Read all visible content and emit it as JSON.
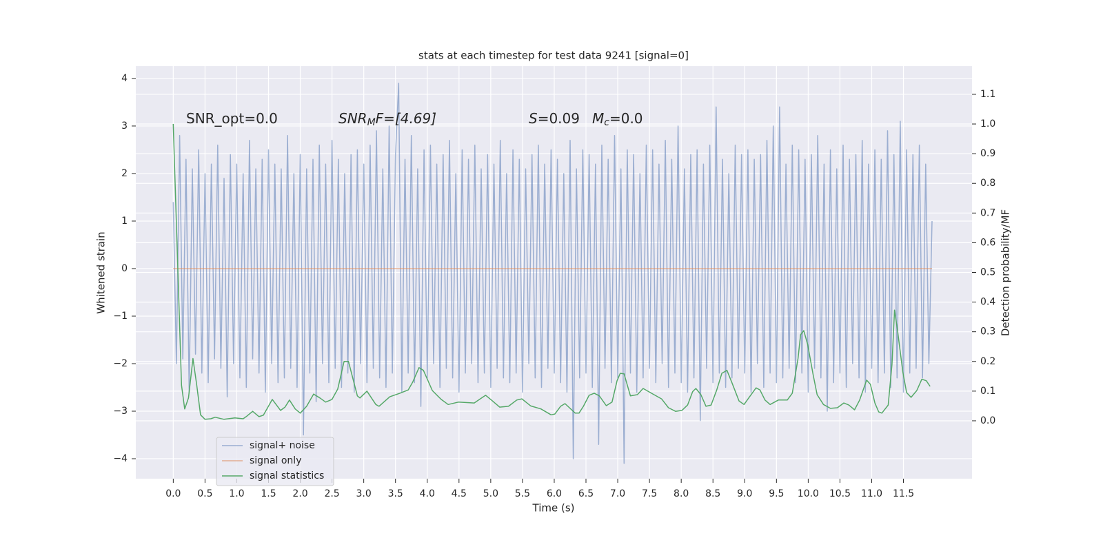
{
  "chart_data": {
    "type": "line",
    "title": "stats at each timestep for test data 9241 [signal=0]",
    "xlabel": "Time (s)",
    "ylabel": "Whitened strain",
    "y2label": "Detection probability/MF",
    "annotations": [
      [
        "SNR_opt=0.0"
      ],
      [
        "SNR",
        "M",
        "F=[4.69]"
      ],
      [
        "S",
        "=0.09"
      ],
      [
        "M",
        "c",
        "=0.0"
      ]
    ],
    "xlim": [
      -0.59,
      12.58
    ],
    "ylim": [
      -4.42,
      4.26
    ],
    "y2lim": [
      -0.195,
      1.195
    ],
    "xticks": [
      {
        "value": 0,
        "label": "0.0"
      },
      0.5,
      {
        "value": 1,
        "label": "1.0"
      },
      1.5,
      {
        "value": 2,
        "label": "2.0"
      },
      2.5,
      {
        "value": 3,
        "label": "3.0"
      },
      3.5,
      {
        "value": 4,
        "label": "4.0"
      },
      4.5,
      {
        "value": 5,
        "label": "5.0"
      },
      5.5,
      {
        "value": 6,
        "label": "6.0"
      },
      6.5,
      {
        "value": 7,
        "label": "7.0"
      },
      7.5,
      {
        "value": 8,
        "label": "8.0"
      },
      8.5,
      {
        "value": 9,
        "label": "9.0"
      },
      9.5,
      {
        "value": 10,
        "label": "10.0"
      },
      10.5,
      {
        "value": 11,
        "label": "11.0"
      },
      11.5
    ],
    "yticks": [
      {
        "value": -4,
        "label": "−4"
      },
      {
        "value": -3,
        "label": "−3"
      },
      {
        "value": -2,
        "label": "−2"
      },
      {
        "value": -1,
        "label": "−1"
      },
      0,
      1,
      2,
      3,
      4
    ],
    "y2ticks": [
      {
        "value": 0,
        "label": "0.0"
      },
      0.1,
      0.2,
      0.3,
      0.4,
      0.5,
      0.6,
      0.7,
      0.8,
      0.9,
      {
        "value": 1,
        "label": "1.0"
      },
      1.1
    ],
    "grid": true,
    "legend": "lower left",
    "series": [
      {
        "name": "signal+ noise",
        "color": "#4c72b0",
        "x": [
          0,
          0.05,
          0.1,
          0.15,
          0.2,
          0.25,
          0.3,
          0.35,
          0.4,
          0.45,
          0.5,
          0.55,
          0.6,
          0.65,
          0.7,
          0.75,
          0.8,
          0.85,
          0.9,
          0.95,
          1,
          1.05,
          1.1,
          1.15,
          1.2,
          1.25,
          1.3,
          1.35,
          1.4,
          1.45,
          1.5,
          1.55,
          1.6,
          1.65,
          1.7,
          1.75,
          1.8,
          1.85,
          1.9,
          1.95,
          2,
          2.05,
          2.1,
          2.15,
          2.2,
          2.25,
          2.3,
          2.35,
          2.4,
          2.45,
          2.5,
          2.55,
          2.6,
          2.65,
          2.7,
          2.75,
          2.8,
          2.85,
          2.9,
          2.95,
          3,
          3.05,
          3.1,
          3.15,
          3.2,
          3.25,
          3.3,
          3.35,
          3.4,
          3.45,
          3.5,
          3.55,
          3.6,
          3.65,
          3.7,
          3.75,
          3.8,
          3.85,
          3.9,
          3.95,
          4,
          4.05,
          4.1,
          4.15,
          4.2,
          4.25,
          4.3,
          4.35,
          4.4,
          4.45,
          4.5,
          4.55,
          4.6,
          4.65,
          4.7,
          4.75,
          4.8,
          4.85,
          4.9,
          4.95,
          5,
          5.05,
          5.1,
          5.15,
          5.2,
          5.25,
          5.3,
          5.35,
          5.4,
          5.45,
          5.5,
          5.55,
          5.6,
          5.65,
          5.7,
          5.75,
          5.8,
          5.85,
          5.9,
          5.95,
          6,
          6.05,
          6.1,
          6.15,
          6.2,
          6.25,
          6.3,
          6.35,
          6.4,
          6.45,
          6.5,
          6.55,
          6.6,
          6.65,
          6.7,
          6.75,
          6.8,
          6.85,
          6.9,
          6.95,
          7,
          7.05,
          7.1,
          7.15,
          7.2,
          7.25,
          7.3,
          7.35,
          7.4,
          7.45,
          7.5,
          7.55,
          7.6,
          7.65,
          7.7,
          7.75,
          7.8,
          7.85,
          7.9,
          7.95,
          8,
          8.05,
          8.1,
          8.15,
          8.2,
          8.25,
          8.3,
          8.35,
          8.4,
          8.45,
          8.5,
          8.55,
          8.6,
          8.65,
          8.7,
          8.75,
          8.8,
          8.85,
          8.9,
          8.95,
          9,
          9.05,
          9.1,
          9.15,
          9.2,
          9.25,
          9.3,
          9.35,
          9.4,
          9.45,
          9.5,
          9.55,
          9.6,
          9.65,
          9.7,
          9.75,
          9.8,
          9.85,
          9.9,
          9.95,
          10,
          10.05,
          10.1,
          10.15,
          10.2,
          10.25,
          10.3,
          10.35,
          10.4,
          10.45,
          10.5,
          10.55,
          10.6,
          10.65,
          10.7,
          10.75,
          10.8,
          10.85,
          10.9,
          10.95,
          11,
          11.05,
          11.1,
          11.15,
          11.2,
          11.25,
          11.3,
          11.35,
          11.4,
          11.45,
          11.5,
          11.55,
          11.6,
          11.65,
          11.7,
          11.75,
          11.8,
          11.85,
          11.9,
          11.95
        ],
        "values": [
          1.4,
          -2.0,
          2.8,
          -1.9,
          2.3,
          -2.6,
          2.1,
          -1.8,
          2.5,
          -2.2,
          2.0,
          -2.4,
          2.2,
          -1.9,
          2.6,
          -2.1,
          1.9,
          -2.7,
          2.4,
          -2.0,
          2.2,
          -2.3,
          2.0,
          -2.5,
          2.7,
          -1.9,
          2.1,
          -2.2,
          2.3,
          -2.6,
          2.5,
          -2.0,
          2.2,
          -2.4,
          2.1,
          -2.3,
          2.8,
          -2.1,
          2.0,
          -2.5,
          2.4,
          -3.5,
          2.1,
          -2.2,
          2.3,
          -2.8,
          2.6,
          -2.0,
          2.2,
          -2.4,
          2.7,
          -2.1,
          2.3,
          -2.5,
          2.0,
          -2.2,
          2.4,
          -2.6,
          2.5,
          -2.0,
          2.2,
          -2.4,
          2.6,
          -2.1,
          2.9,
          -2.3,
          2.1,
          -2.5,
          3.0,
          -2.2,
          2.4,
          3.9,
          -2.6,
          2.3,
          -2.2,
          2.8,
          -2.4,
          2.1,
          -2.9,
          2.5,
          -2.3,
          2.6,
          -2.0,
          2.2,
          -2.5,
          2.4,
          -2.1,
          2.7,
          -2.3,
          2.0,
          -2.6,
          2.5,
          -2.2,
          2.3,
          -2.0,
          2.6,
          -2.4,
          2.1,
          -2.2,
          2.4,
          -2.5,
          2.2,
          -2.1,
          2.7,
          -2.3,
          2.0,
          -2.4,
          2.5,
          -2.2,
          2.3,
          -2.6,
          2.1,
          -2.0,
          2.4,
          -2.3,
          2.6,
          -2.5,
          2.2,
          -2.1,
          2.5,
          -2.2,
          2.3,
          -2.4,
          2.0,
          -2.6,
          2.7,
          -4.0,
          2.1,
          -2.3,
          2.5,
          -2.2,
          2.4,
          -2.5,
          2.2,
          -3.7,
          2.6,
          -2.1,
          2.3,
          -2.4,
          2.8,
          -2.3,
          2.1,
          -4.1,
          2.5,
          -2.2,
          2.4,
          -2.6,
          2.0,
          -2.3,
          2.6,
          -2.1,
          2.5,
          -2.4,
          2.2,
          -2.0,
          2.7,
          -2.5,
          2.3,
          -2.2,
          3.0,
          -2.4,
          2.1,
          -2.6,
          2.4,
          -2.3,
          2.5,
          -3.2,
          2.2,
          -2.1,
          2.6,
          -2.4,
          3.4,
          -2.2,
          2.3,
          -2.5,
          2.0,
          -2.3,
          2.6,
          -2.1,
          2.4,
          -2.2,
          2.5,
          -2.6,
          2.3,
          -2.0,
          2.4,
          -2.5,
          2.7,
          -2.2,
          3.0,
          -2.4,
          3.4,
          -2.3,
          2.2,
          -2.1,
          2.6,
          -2.4,
          2.5,
          -2.2,
          2.3,
          -2.6,
          2.4,
          -2.1,
          2.8,
          -2.3,
          2.2,
          -3.0,
          2.5,
          -2.4,
          2.1,
          -2.2,
          2.6,
          -2.5,
          2.3,
          -2.0,
          2.4,
          -2.3,
          2.7,
          -2.6,
          2.2,
          -2.1,
          2.5,
          -2.4,
          2.3,
          -2.2,
          2.9,
          -2.5,
          2.4,
          -2.3,
          3.1,
          -2.6,
          2.5,
          -2.2,
          2.4,
          -2.1,
          2.6,
          -2.3,
          2.2,
          -2.0,
          1.0
        ]
      },
      {
        "name": "signal only",
        "color": "#dd8452",
        "x": [
          0,
          11.95
        ],
        "values": [
          0,
          0
        ]
      },
      {
        "name": "signal statistics",
        "color": "#55a868",
        "axis": "y2",
        "x": [
          0,
          0.13,
          0.18,
          0.24,
          0.31,
          0.37,
          0.43,
          0.5,
          0.59,
          0.66,
          0.8,
          0.97,
          1.1,
          1.16,
          1.25,
          1.35,
          1.42,
          1.56,
          1.69,
          1.76,
          1.83,
          1.92,
          2.0,
          2.1,
          2.21,
          2.31,
          2.4,
          2.5,
          2.59,
          2.69,
          2.76,
          2.9,
          2.94,
          3.05,
          3.19,
          3.24,
          3.41,
          3.57,
          3.7,
          3.77,
          3.87,
          3.94,
          4.08,
          4.22,
          4.33,
          4.49,
          4.74,
          4.87,
          4.92,
          5.01,
          5.14,
          5.28,
          5.41,
          5.49,
          5.63,
          5.79,
          5.95,
          6.01,
          6.1,
          6.17,
          6.33,
          6.39,
          6.46,
          6.55,
          6.63,
          6.71,
          6.82,
          6.91,
          6.99,
          7.04,
          7.1,
          7.2,
          7.31,
          7.4,
          7.53,
          7.69,
          7.8,
          7.91,
          8.01,
          8.1,
          8.18,
          8.23,
          8.31,
          8.39,
          8.47,
          8.56,
          8.64,
          8.72,
          8.8,
          8.91,
          8.99,
          9.07,
          9.18,
          9.24,
          9.32,
          9.4,
          9.53,
          9.67,
          9.75,
          9.84,
          9.88,
          9.93,
          9.99,
          10.08,
          10.14,
          10.24,
          10.35,
          10.46,
          10.56,
          10.64,
          10.73,
          10.81,
          10.92,
          10.98,
          11.05,
          11.11,
          11.16,
          11.26,
          11.32,
          11.36,
          11.41,
          11.49,
          11.55,
          11.62,
          11.71,
          11.79,
          11.86,
          11.92
        ],
        "values": [
          1.0,
          0.12,
          0.04,
          0.077,
          0.21,
          0.12,
          0.02,
          0.005,
          0.007,
          0.012,
          0.005,
          0.01,
          0.007,
          0.016,
          0.032,
          0.014,
          0.019,
          0.072,
          0.035,
          0.046,
          0.07,
          0.04,
          0.026,
          0.049,
          0.09,
          0.077,
          0.063,
          0.072,
          0.107,
          0.2,
          0.2,
          0.084,
          0.077,
          0.1,
          0.055,
          0.049,
          0.081,
          0.093,
          0.104,
          0.13,
          0.179,
          0.17,
          0.102,
          0.072,
          0.055,
          0.063,
          0.06,
          0.079,
          0.086,
          0.07,
          0.046,
          0.049,
          0.07,
          0.074,
          0.05,
          0.04,
          0.02,
          0.023,
          0.049,
          0.058,
          0.026,
          0.026,
          0.049,
          0.086,
          0.093,
          0.084,
          0.051,
          0.063,
          0.135,
          0.16,
          0.158,
          0.084,
          0.088,
          0.109,
          0.093,
          0.074,
          0.044,
          0.032,
          0.035,
          0.053,
          0.098,
          0.109,
          0.088,
          0.049,
          0.053,
          0.104,
          0.16,
          0.17,
          0.128,
          0.067,
          0.055,
          0.079,
          0.111,
          0.104,
          0.07,
          0.055,
          0.07,
          0.07,
          0.093,
          0.21,
          0.29,
          0.304,
          0.258,
          0.153,
          0.088,
          0.055,
          0.042,
          0.044,
          0.06,
          0.053,
          0.037,
          0.07,
          0.137,
          0.123,
          0.06,
          0.03,
          0.026,
          0.053,
          0.19,
          0.373,
          0.3,
          0.165,
          0.095,
          0.079,
          0.102,
          0.14,
          0.135,
          0.116
        ]
      }
    ]
  }
}
